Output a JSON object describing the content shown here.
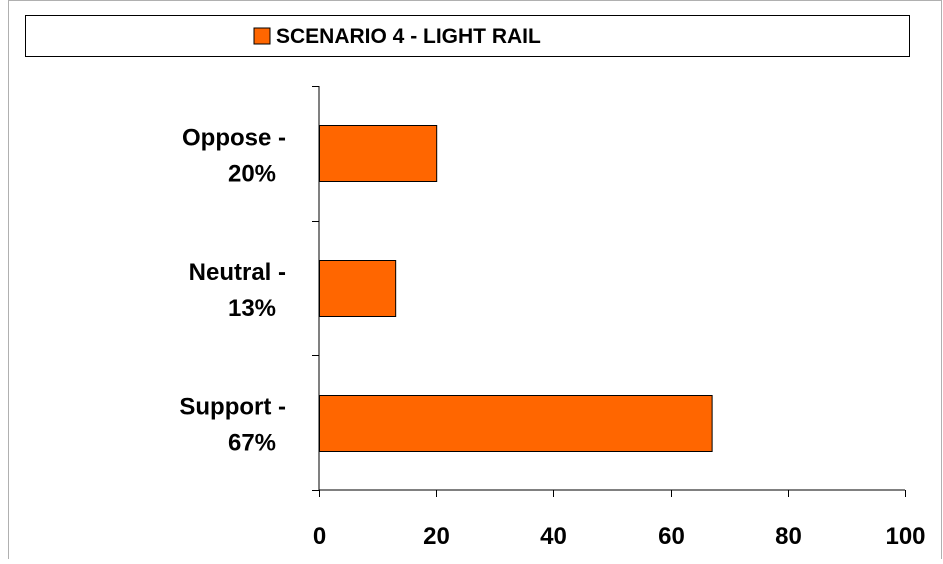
{
  "chart_data": {
    "type": "bar",
    "orientation": "horizontal",
    "legend": {
      "label": "SCENARIO 4 - LIGHT RAIL",
      "placement": "top"
    },
    "categories": [
      [
        "Oppose -",
        "20%"
      ],
      [
        "Neutral -",
        "13%"
      ],
      [
        "Support -",
        "67%"
      ]
    ],
    "series": [
      {
        "name": "SCENARIO 4 - LIGHT RAIL",
        "values": [
          20,
          13,
          67
        ]
      }
    ],
    "xlim": [
      0,
      100
    ],
    "xticks": [
      0,
      20,
      40,
      60,
      80,
      100
    ],
    "grid": false,
    "colors": {
      "bar": "#FF6600",
      "bar_outline": "#000000",
      "axis": "#000000",
      "border": "#000000",
      "background": "#ffffff"
    }
  }
}
